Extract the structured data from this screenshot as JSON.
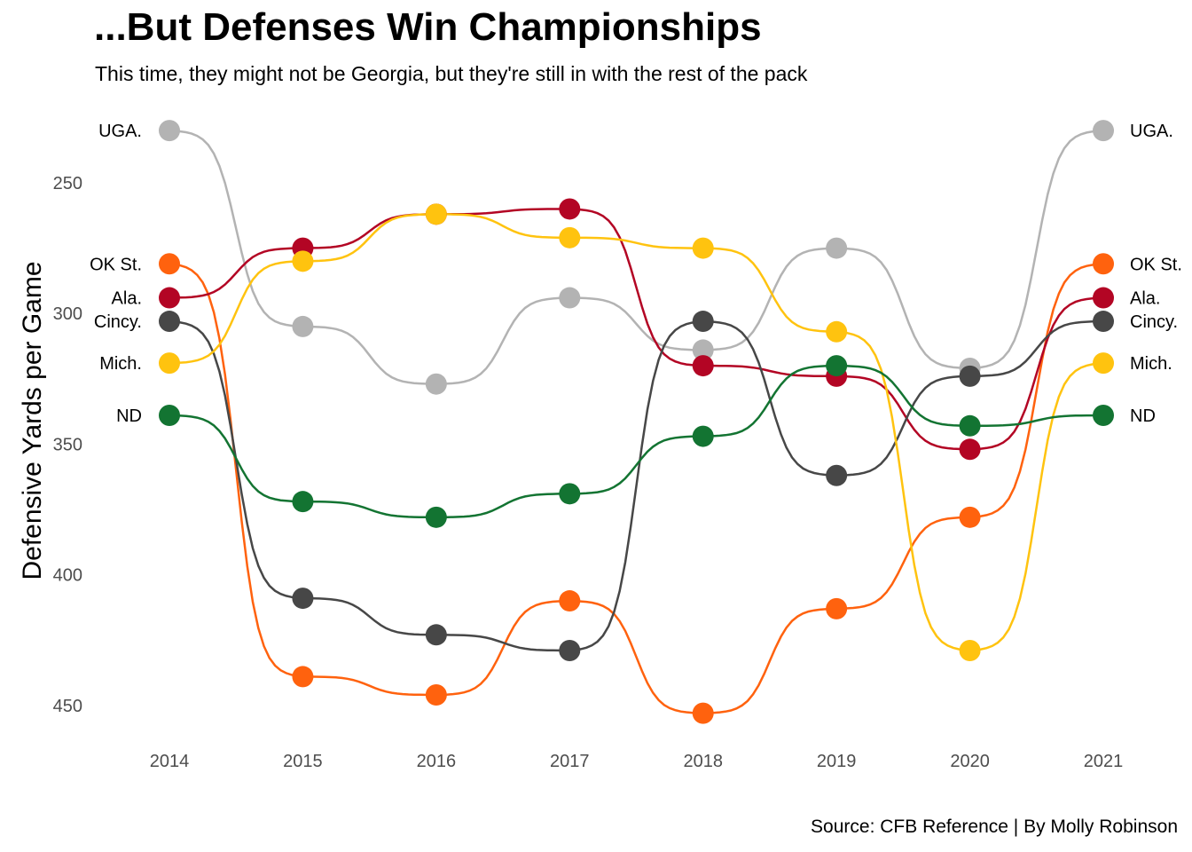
{
  "chart_data": {
    "type": "line",
    "title": "...But Defenses Win Championships",
    "subtitle": "This time, they might not be Georgia, but they're still in with the rest of the pack",
    "caption": "Source: CFB Reference | By Molly Robinson",
    "xlabel": "",
    "ylabel": "Defensive Yards per Game",
    "x": [
      2014,
      2015,
      2016,
      2017,
      2018,
      2019,
      2020,
      2021
    ],
    "y_ticks": [
      250,
      300,
      350,
      400,
      450
    ],
    "ylim": [
      230,
      455
    ],
    "y_reversed": true,
    "grid": false,
    "legend": "none",
    "series": [
      {
        "name": "UGA.",
        "color": "#B3B3B3",
        "values": [
          230,
          305,
          327,
          294,
          314,
          275,
          321,
          230
        ]
      },
      {
        "name": "OK St.",
        "color": "#FF620E",
        "values": [
          281,
          439,
          446,
          410,
          453,
          413,
          378,
          281
        ]
      },
      {
        "name": "Ala.",
        "color": "#B30524",
        "values": [
          294,
          275,
          262,
          260,
          320,
          324,
          352,
          294
        ]
      },
      {
        "name": "Cincy.",
        "color": "#474747",
        "values": [
          303,
          409,
          423,
          429,
          303,
          362,
          324,
          303
        ]
      },
      {
        "name": "Mich.",
        "color": "#FFC30F",
        "values": [
          319,
          280,
          262,
          271,
          275,
          307,
          429,
          319
        ]
      },
      {
        "name": "ND",
        "color": "#137432",
        "values": [
          339,
          372,
          378,
          369,
          347,
          320,
          343,
          339
        ]
      }
    ]
  }
}
